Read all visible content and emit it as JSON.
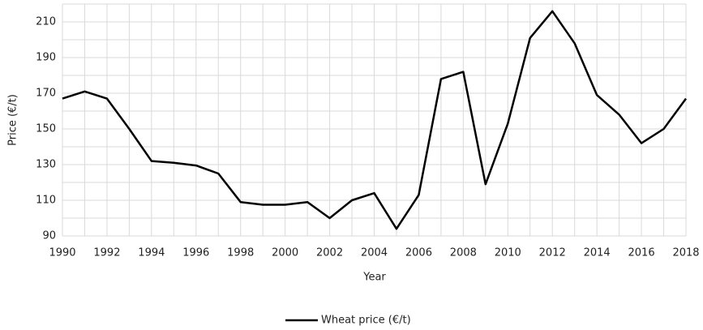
{
  "chart_data": {
    "type": "line",
    "x_label": "Year",
    "y_label": "Price (€/t)",
    "x": [
      1990,
      1991,
      1992,
      1993,
      1994,
      1995,
      1996,
      1997,
      1998,
      1999,
      2000,
      2001,
      2002,
      2003,
      2004,
      2005,
      2006,
      2007,
      2008,
      2009,
      2010,
      2011,
      2012,
      2013,
      2014,
      2015,
      2016,
      2017,
      2018
    ],
    "series": [
      {
        "name": "Wheat price (€/t)",
        "color": "#000000",
        "values": [
          167,
          171,
          167,
          150,
          132,
          131,
          129.5,
          125,
          109,
          107.5,
          107.5,
          109,
          100,
          110,
          114,
          94,
          113,
          178,
          182,
          119,
          153,
          201,
          216,
          198,
          169,
          158,
          142,
          150,
          167
        ]
      }
    ],
    "xlim": [
      1990,
      2018
    ],
    "xticks": [
      1990,
      1992,
      1994,
      1996,
      1998,
      2000,
      2002,
      2004,
      2006,
      2008,
      2010,
      2012,
      2014,
      2016,
      2018
    ],
    "x_minor_ticks": [
      1991,
      1993,
      1995,
      1997,
      1999,
      2001,
      2003,
      2005,
      2007,
      2009,
      2011,
      2013,
      2015,
      2017
    ],
    "ylim": [
      90,
      220
    ],
    "yticks": [
      90,
      110,
      130,
      150,
      170,
      190,
      210
    ],
    "y_minor_ticks": [
      100,
      120,
      140,
      160,
      180,
      200,
      220
    ],
    "grid": true,
    "legend": "bottom"
  }
}
